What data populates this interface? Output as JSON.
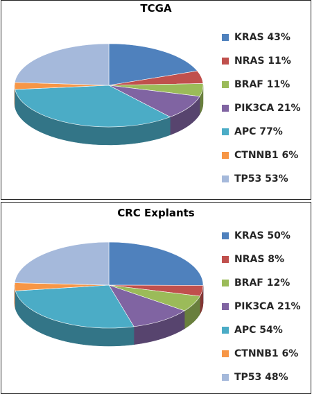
{
  "chart_data": [
    {
      "type": "pie",
      "title": "TCGA",
      "categories": [
        "KRAS 43%",
        "NRAS 11%",
        "BRAF 11%",
        "PIK3CA 21%",
        "APC 77%",
        "CTNNB1 6%",
        "TP53 53%"
      ],
      "values": [
        43,
        11,
        11,
        21,
        77,
        6,
        53
      ],
      "colors": [
        "#4f81bd",
        "#c0504d",
        "#9bbb59",
        "#8064a2",
        "#4bacc6",
        "#f79646",
        "#a5b9db"
      ],
      "style": "3d",
      "legend": "right"
    },
    {
      "type": "pie",
      "title": "CRC Explants",
      "categories": [
        "KRAS 50%",
        "NRAS 8%",
        "BRAF 12%",
        "PIK3CA 21%",
        "APC 54%",
        "CTNNB1 6%",
        "TP53 48%"
      ],
      "values": [
        50,
        8,
        12,
        21,
        54,
        6,
        48
      ],
      "colors": [
        "#4f81bd",
        "#c0504d",
        "#9bbb59",
        "#8064a2",
        "#4bacc6",
        "#f79646",
        "#a5b9db"
      ],
      "style": "3d",
      "legend": "right"
    }
  ]
}
